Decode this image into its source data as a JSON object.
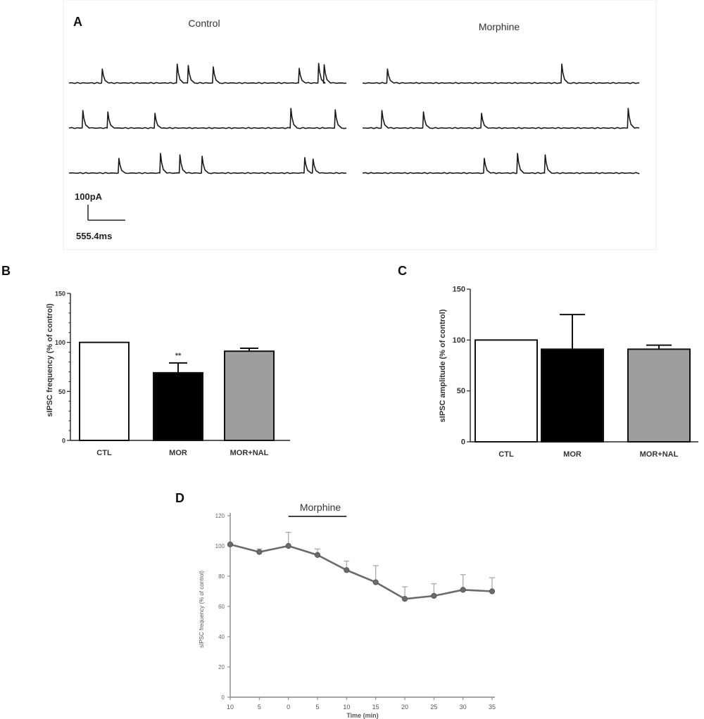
{
  "panel_labels": {
    "a": "A",
    "b": "B",
    "c": "C",
    "d": "D"
  },
  "traces": {
    "control_title": "Control",
    "morphine_title": "Morphine",
    "scale_amplitude": "100pA",
    "scale_time": "555.4ms",
    "control_events": [
      [
        0.12,
        0.39,
        0.43,
        0.52,
        0.83,
        0.9,
        0.92
      ],
      [
        0.05,
        0.14,
        0.31,
        0.8,
        0.96
      ],
      [
        0.18,
        0.33,
        0.4,
        0.48,
        0.85,
        0.88
      ]
    ],
    "morphine_events": [
      [
        0.09,
        0.72
      ],
      [
        0.07,
        0.22,
        0.43,
        0.96
      ],
      [
        0.44,
        0.56,
        0.66
      ]
    ]
  },
  "chart_data": [
    {
      "panel": "B",
      "type": "bar",
      "categories": [
        "CTL",
        "MOR",
        "MOR+NAL"
      ],
      "values": [
        100,
        69,
        91
      ],
      "errors": [
        0,
        10,
        3
      ],
      "colors": [
        "#ffffff",
        "#000000",
        "#9e9e9e"
      ],
      "ylabel": "sIPSC frequency (% of control)",
      "ylim": [
        0,
        150
      ],
      "yticks": [
        "0",
        "50",
        "100",
        "150"
      ],
      "annotation": {
        "text": "**",
        "category": "MOR"
      }
    },
    {
      "panel": "C",
      "type": "bar",
      "categories": [
        "CTL",
        "MOR",
        "MOR+NAL"
      ],
      "values": [
        100,
        91,
        91
      ],
      "errors": [
        0,
        34,
        4
      ],
      "colors": [
        "#ffffff",
        "#000000",
        "#9e9e9e"
      ],
      "ylabel": "sIPSC amplitude (% of control)",
      "ylim": [
        0,
        150
      ],
      "yticks": [
        "0",
        "50",
        "100",
        "150"
      ]
    },
    {
      "panel": "D",
      "type": "line",
      "x": [
        -10,
        -5,
        0,
        5,
        10,
        15,
        20,
        25,
        30,
        35
      ],
      "y": [
        101,
        96,
        100,
        94,
        84,
        76,
        65,
        67,
        71,
        70
      ],
      "errors": [
        0,
        2,
        9,
        4,
        6,
        11,
        8,
        8,
        10,
        9
      ],
      "xlabel": "Time (min)",
      "ylabel": "sIPSC frequency (% of control)",
      "xticks": [
        "10",
        "5",
        "0",
        "5",
        "10",
        "15",
        "20",
        "25",
        "30",
        "35"
      ],
      "yticks": [
        "0",
        "20",
        "40",
        "60",
        "80",
        "100",
        "120"
      ],
      "ylim": [
        0,
        120
      ],
      "bar_label": "Morphine",
      "bar_range": [
        0,
        10
      ]
    }
  ]
}
